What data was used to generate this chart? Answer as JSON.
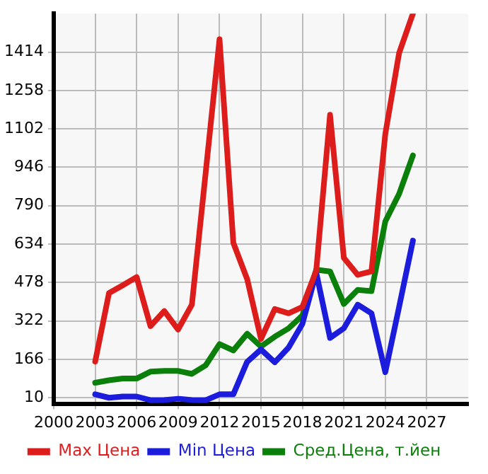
{
  "chart_data": {
    "type": "line",
    "x": [
      2003,
      2004,
      2005,
      2006,
      2007,
      2008,
      2009,
      2010,
      2011,
      2012,
      2013,
      2014,
      2015,
      2016,
      2017,
      2018,
      2019,
      2020,
      2021,
      2022,
      2023,
      2024,
      2025,
      2026
    ],
    "series": [
      {
        "name": "Max Цена",
        "color": "#dd1c1c",
        "values": [
          157,
          435,
          467,
          500,
          301,
          362,
          287,
          388,
          925,
          1466,
          639,
          492,
          249,
          370,
          353,
          379,
          526,
          1159,
          578,
          509,
          523,
          1081,
          1410,
          1570
        ]
      },
      {
        "name": "Min Цена",
        "color": "#1c1cdd",
        "values": [
          24,
          10,
          15,
          15,
          0,
          1,
          6,
          1,
          0,
          24,
          24,
          156,
          206,
          154,
          214,
          310,
          518,
          253,
          292,
          388,
          353,
          114,
          379,
          648
        ]
      },
      {
        "name": "Сред.Цена, т.йен",
        "color": "#0a800a",
        "values": [
          71,
          81,
          88,
          88,
          116,
          119,
          119,
          107,
          142,
          228,
          202,
          270,
          218,
          258,
          292,
          344,
          530,
          523,
          391,
          448,
          443,
          726,
          838,
          994
        ]
      }
    ],
    "xlim": [
      2000,
      2030
    ],
    "xticks": [
      2000,
      2003,
      2006,
      2009,
      2012,
      2015,
      2018,
      2021,
      2024,
      2027
    ],
    "ylim": [
      -14,
      1570
    ],
    "yticks": [
      10,
      166,
      322,
      478,
      634,
      790,
      946,
      1102,
      1258,
      1414
    ],
    "grid": true,
    "legend": "bottom",
    "marker": "none",
    "line_style": "solid"
  }
}
